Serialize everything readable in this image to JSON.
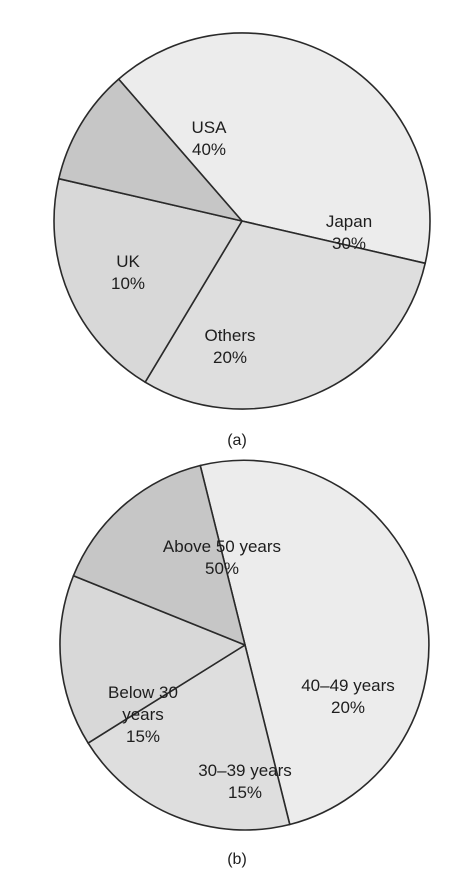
{
  "chart_data": [
    {
      "type": "pie",
      "caption": "(a)",
      "slices": [
        {
          "label": "USA",
          "value_label": "40%",
          "value": 40,
          "color": "#ececec"
        },
        {
          "label": "Japan",
          "value_label": "30%",
          "value": 30,
          "color": "#dedede"
        },
        {
          "label": "Others",
          "value_label": "20%",
          "value": 20,
          "color": "#d8d8d8"
        },
        {
          "label": "UK",
          "value_label": "10%",
          "value": 10,
          "color": "#c6c6c6"
        }
      ]
    },
    {
      "type": "pie",
      "caption": "(b)",
      "slices": [
        {
          "label": "Above 50 years",
          "value_label": "50%",
          "value": 50,
          "color": "#ececec"
        },
        {
          "label": "40–49 years",
          "value_label": "20%",
          "value": 20,
          "color": "#dedede"
        },
        {
          "label": "30–39 years",
          "value_label": "15%",
          "value": 15,
          "color": "#d8d8d8"
        },
        {
          "label": "Below 30 years",
          "value_label": "15%",
          "value": 15,
          "color": "#c6c6c6"
        }
      ]
    }
  ]
}
